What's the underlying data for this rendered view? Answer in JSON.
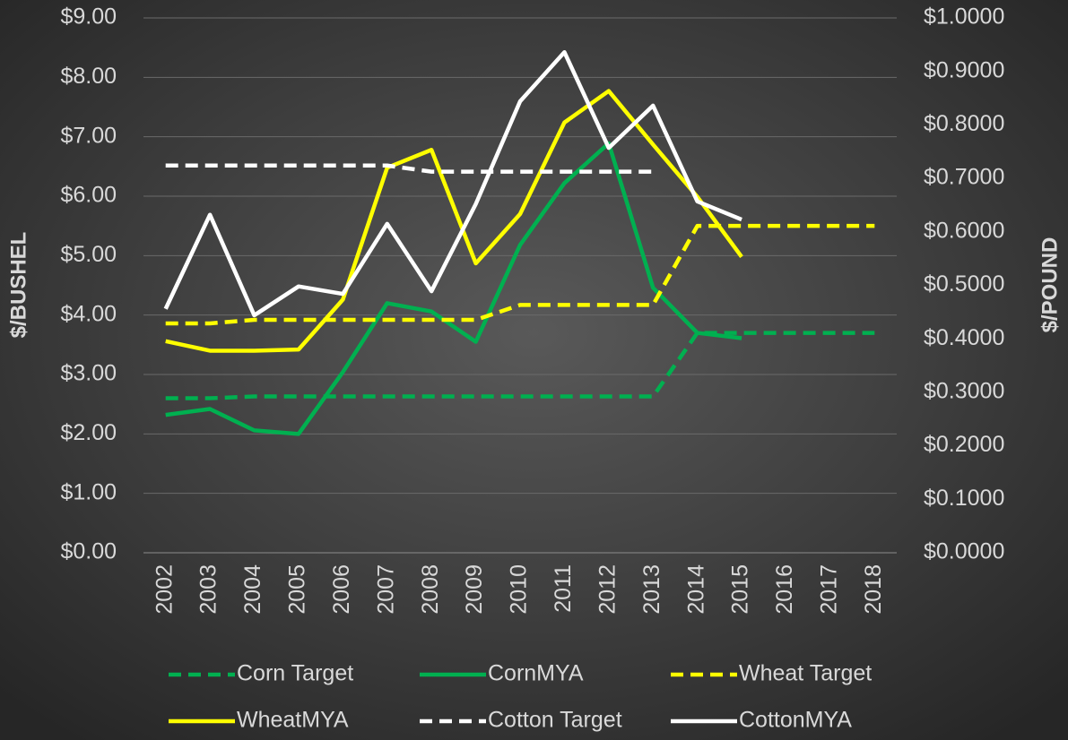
{
  "chart_data": {
    "type": "line",
    "ylabel": "$/BUSHEL",
    "y2label": "$/POUND",
    "categories": [
      "2002",
      "2003",
      "2004",
      "2005",
      "2006",
      "2007",
      "2008",
      "2009",
      "2010",
      "2011",
      "2012",
      "2013",
      "2014",
      "2015",
      "2016",
      "2017",
      "2018"
    ],
    "ylim": [
      0,
      9
    ],
    "yticks": [
      {
        "value": 0,
        "label": "$0.00"
      },
      {
        "value": 1,
        "label": "$1.00"
      },
      {
        "value": 2,
        "label": "$2.00"
      },
      {
        "value": 3,
        "label": "$3.00"
      },
      {
        "value": 4,
        "label": "$4.00"
      },
      {
        "value": 5,
        "label": "$5.00"
      },
      {
        "value": 6,
        "label": "$6.00"
      },
      {
        "value": 7,
        "label": "$7.00"
      },
      {
        "value": 8,
        "label": "$8.00"
      },
      {
        "value": 9,
        "label": "$9.00"
      }
    ],
    "y2lim": [
      0,
      1
    ],
    "y2ticks": [
      {
        "value": 0,
        "label": "$0.0000"
      },
      {
        "value": 0.1,
        "label": "$0.1000"
      },
      {
        "value": 0.2,
        "label": "$0.2000"
      },
      {
        "value": 0.3,
        "label": "$0.3000"
      },
      {
        "value": 0.4,
        "label": "$0.4000"
      },
      {
        "value": 0.5,
        "label": "$0.5000"
      },
      {
        "value": 0.6,
        "label": "$0.6000"
      },
      {
        "value": 0.7,
        "label": "$0.7000"
      },
      {
        "value": 0.8,
        "label": "$0.8000"
      },
      {
        "value": 0.9,
        "label": "$0.9000"
      },
      {
        "value": 1,
        "label": "$1.0000"
      }
    ],
    "grid": true,
    "legend": "bottom",
    "series": [
      {
        "name": "Corn Target",
        "color": "#00b050",
        "dashed": true,
        "values": [
          2.6,
          2.6,
          2.63,
          2.63,
          2.63,
          2.63,
          2.63,
          2.63,
          2.63,
          2.63,
          2.63,
          2.63,
          3.7,
          3.7,
          3.7,
          3.7,
          3.7
        ]
      },
      {
        "name": "CornMYA",
        "color": "#00b050",
        "dashed": false,
        "values": [
          2.32,
          2.42,
          2.06,
          2.0,
          3.04,
          4.2,
          4.06,
          3.55,
          5.18,
          6.22,
          6.89,
          4.46,
          3.7,
          3.61,
          null,
          null,
          null
        ]
      },
      {
        "name": "Wheat Target",
        "color": "#ffff00",
        "dashed": true,
        "values": [
          3.86,
          3.86,
          3.92,
          3.92,
          3.92,
          3.92,
          3.92,
          3.92,
          4.17,
          4.17,
          4.17,
          4.17,
          5.5,
          5.5,
          5.5,
          5.5,
          5.5
        ]
      },
      {
        "name": "WheatMYA",
        "color": "#ffff00",
        "dashed": false,
        "values": [
          3.56,
          3.4,
          3.4,
          3.42,
          4.26,
          6.48,
          6.78,
          4.87,
          5.7,
          7.24,
          7.77,
          6.87,
          5.99,
          4.98,
          null,
          null,
          null
        ]
      },
      {
        "name": "Cotton Target",
        "color": "#ffffff",
        "dashed": true,
        "axis": "y2",
        "values": [
          0.724,
          0.724,
          0.724,
          0.724,
          0.724,
          0.724,
          0.7125,
          0.7125,
          0.7125,
          0.7125,
          0.7125,
          0.7125,
          null,
          null,
          null,
          null,
          null
        ]
      },
      {
        "name": "CottonMYA",
        "color": "#ffffff",
        "dashed": false,
        "axis": "y2",
        "values": [
          0.456,
          0.632,
          0.444,
          0.498,
          0.484,
          0.615,
          0.489,
          0.652,
          0.844,
          0.936,
          0.757,
          0.836,
          0.657,
          0.623,
          null,
          null,
          null
        ]
      }
    ]
  }
}
